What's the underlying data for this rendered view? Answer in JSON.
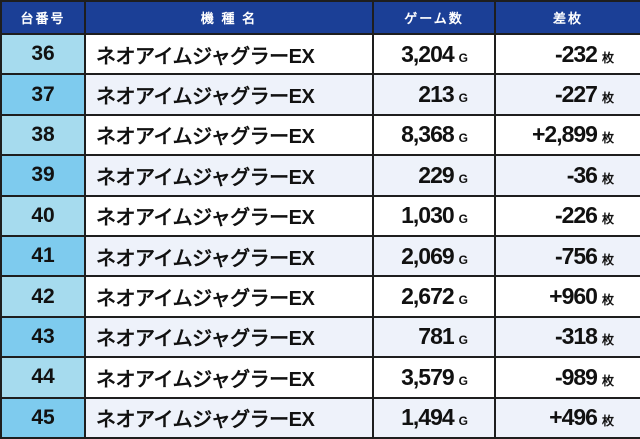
{
  "headers": [
    "台番号",
    "機 種 名",
    "ゲーム数",
    "差枚"
  ],
  "game_unit": "G",
  "diff_unit": "枚",
  "rows": [
    {
      "no": "36",
      "name": "ネオアイムジャグラーEX",
      "games": "3,204",
      "diff": "-232"
    },
    {
      "no": "37",
      "name": "ネオアイムジャグラーEX",
      "games": "213",
      "diff": "-227"
    },
    {
      "no": "38",
      "name": "ネオアイムジャグラーEX",
      "games": "8,368",
      "diff": "+2,899"
    },
    {
      "no": "39",
      "name": "ネオアイムジャグラーEX",
      "games": "229",
      "diff": "-36"
    },
    {
      "no": "40",
      "name": "ネオアイムジャグラーEX",
      "games": "1,030",
      "diff": "-226"
    },
    {
      "no": "41",
      "name": "ネオアイムジャグラーEX",
      "games": "2,069",
      "diff": "-756"
    },
    {
      "no": "42",
      "name": "ネオアイムジャグラーEX",
      "games": "2,672",
      "diff": "+960"
    },
    {
      "no": "43",
      "name": "ネオアイムジャグラーEX",
      "games": "781",
      "diff": "-318"
    },
    {
      "no": "44",
      "name": "ネオアイムジャグラーEX",
      "games": "3,579",
      "diff": "-989"
    },
    {
      "no": "45",
      "name": "ネオアイムジャグラーEX",
      "games": "1,494",
      "diff": "+496"
    }
  ],
  "colors": {
    "header": "#1b3f96",
    "number_cell_a": "#a6dbee",
    "number_cell_b": "#7ecbee",
    "row_alt": "#eef2fa"
  }
}
